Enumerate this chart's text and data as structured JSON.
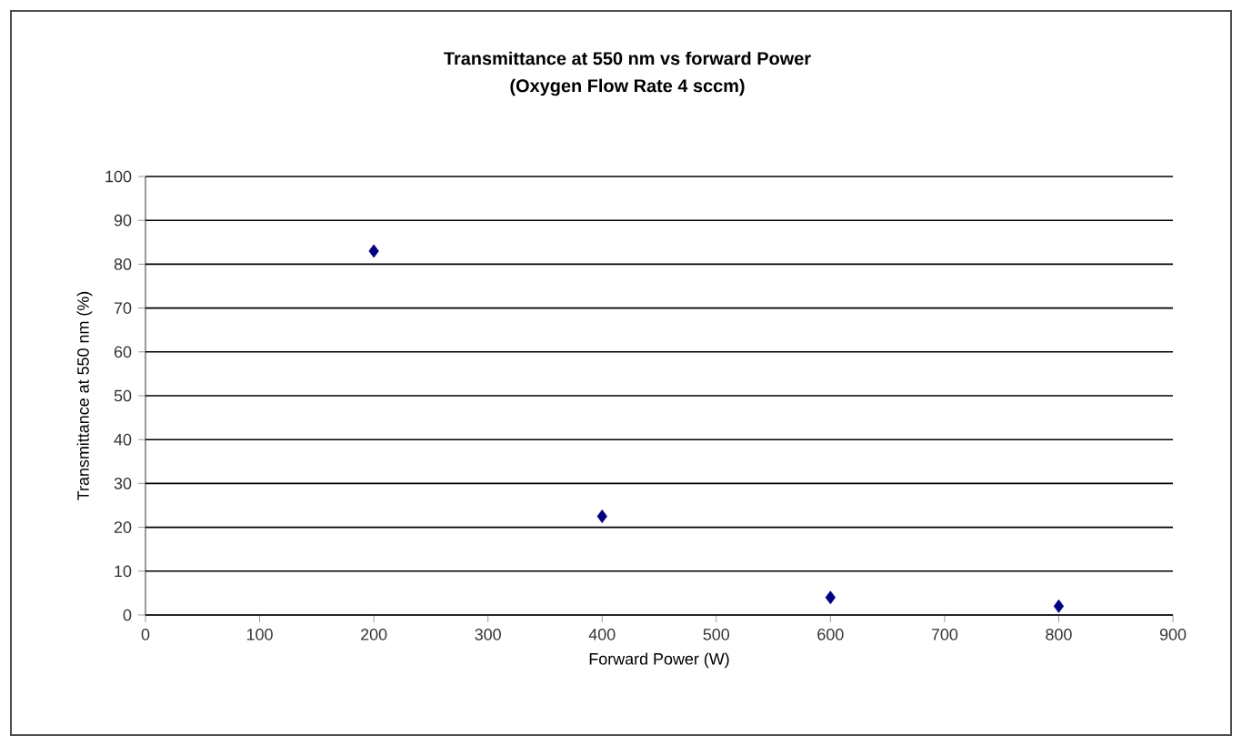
{
  "chart_data": {
    "type": "scatter",
    "title": "Transmittance at 550 nm vs forward Power",
    "subtitle": "(Oxygen Flow Rate 4 sccm)",
    "xlabel": "Forward Power (W)",
    "ylabel": "Transmittance at 550 nm (%)",
    "x": [
      200,
      400,
      600,
      800
    ],
    "values": [
      83,
      22.5,
      4,
      2
    ],
    "color": "#000080",
    "marker": "diamond",
    "xlim": [
      0,
      900
    ],
    "xticks": [
      0,
      100,
      200,
      300,
      400,
      500,
      600,
      700,
      800,
      900
    ],
    "ylim": [
      0,
      100
    ],
    "yticks": [
      0,
      10,
      20,
      30,
      40,
      50,
      60,
      70,
      80,
      90,
      100
    ],
    "grid": "y"
  }
}
